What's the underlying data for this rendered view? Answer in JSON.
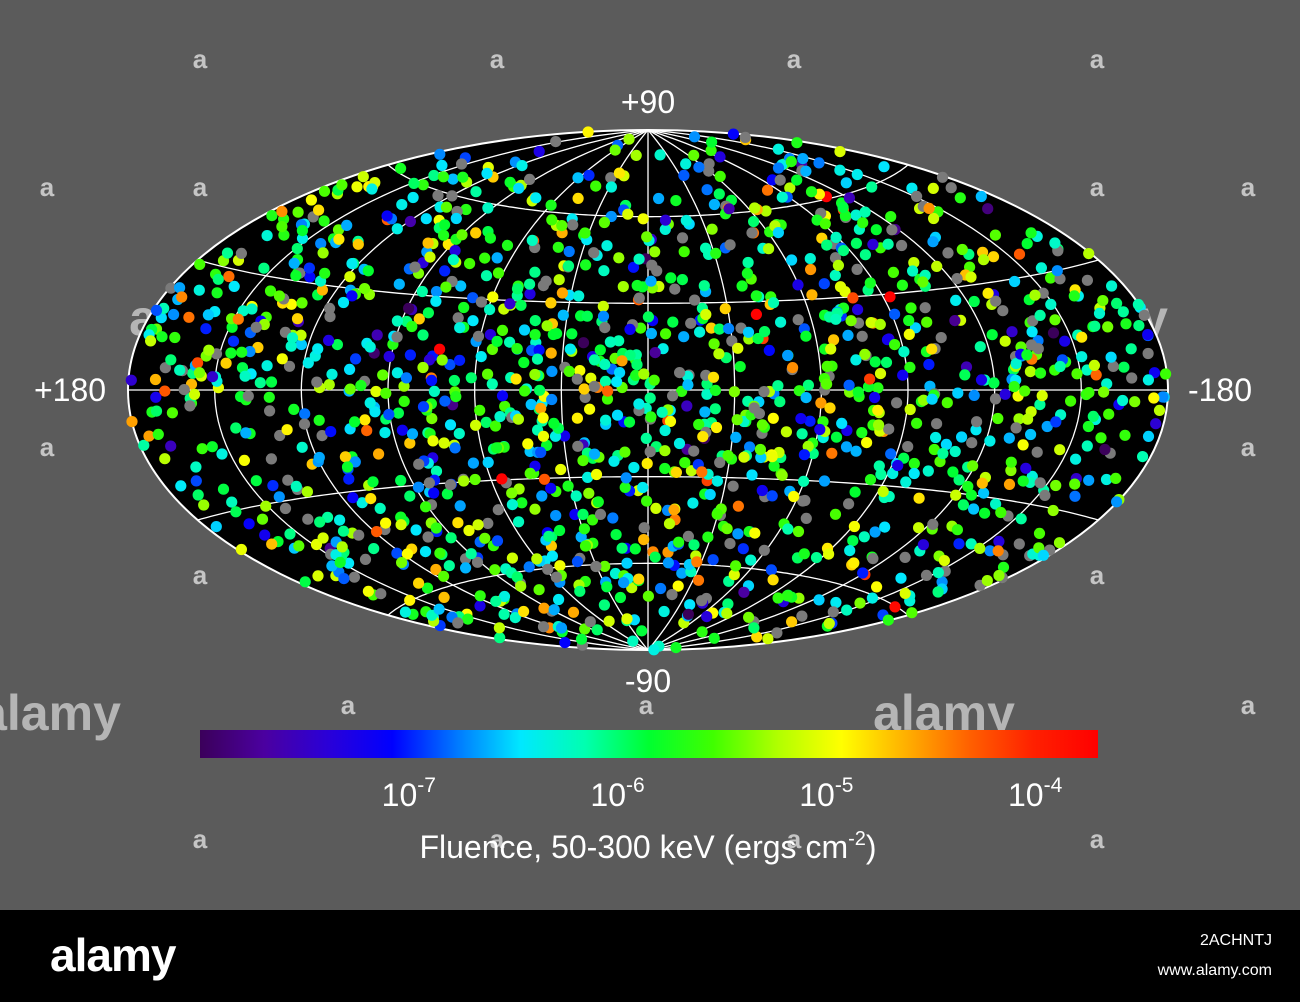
{
  "chart_data": {
    "type": "scatter",
    "projection": "aitoff",
    "coordinate_system": "galactic",
    "axes": {
      "lat_top_label": "+90",
      "lat_bottom_label": "-90",
      "lon_left_label": "+180",
      "lon_right_label": "-180",
      "lon_range": [
        180,
        -180
      ],
      "lat_range": [
        -90,
        90
      ],
      "grid": true,
      "grid_lon_step": 30,
      "grid_lat_step": 30
    },
    "points": {
      "count": 1637,
      "distribution": "isotropic",
      "fluence_range": [
        1e-08,
        0.0002
      ],
      "no_fluence_color": "#7a7a7a",
      "fraction_no_fluence": 0.12
    },
    "colorbar": {
      "label_prefix": "Fluence, 50-300 keV (ergs cm",
      "label_exp": "-2",
      "label_suffix": ")",
      "scale": "log",
      "range": [
        1e-08,
        0.0002
      ],
      "ticks": [
        {
          "base": "10",
          "exp": "-7",
          "value": 1e-07
        },
        {
          "base": "10",
          "exp": "-6",
          "value": 1e-06
        },
        {
          "base": "10",
          "exp": "-5",
          "value": 1e-05
        },
        {
          "base": "10",
          "exp": "-4",
          "value": 0.0001
        }
      ],
      "colors": [
        "#3b005a",
        "#4b00a0",
        "#2a00d8",
        "#0000ff",
        "#0078ff",
        "#00e8ff",
        "#00ffb0",
        "#00ff30",
        "#40ff00",
        "#b0ff00",
        "#ffff00",
        "#ffb000",
        "#ff6000",
        "#ff2000",
        "#ff0000"
      ]
    },
    "colors": {
      "background": "#5b5b5b",
      "plot_fill": "#000000",
      "grid": "#ffffff",
      "text": "#ffffff"
    }
  },
  "watermarks": {
    "brand": "alamy",
    "symbol": "a"
  },
  "footer": {
    "logo": "alamy",
    "image_id": "2ACHNTJ",
    "site": "www.alamy.com"
  }
}
